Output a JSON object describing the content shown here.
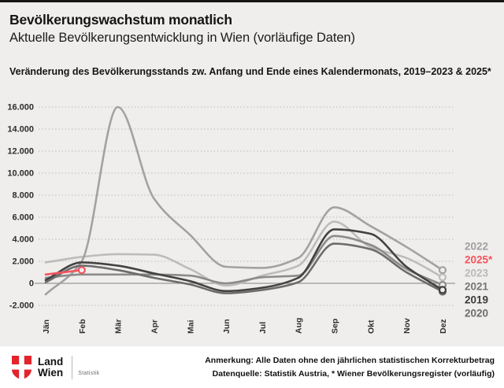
{
  "header": {
    "title": "Bevölkerungswachstum monatlich",
    "subtitle": "Aktuelle Bevölkerungsentwicklung in Wien (vorläufige Daten)"
  },
  "chart_data": {
    "type": "line",
    "heading": "Veränderung des Bevölkerungsstands zw. Anfang und Ende eines Kalendermonats, 2019–2023 & 2025*",
    "categories": [
      "Jän",
      "Feb",
      "Mär",
      "Apr",
      "Mai",
      "Jun",
      "Jul",
      "Aug",
      "Sep",
      "Okt",
      "Nov",
      "Dez"
    ],
    "xlabel": "",
    "ylabel": "",
    "ylim": [
      -2000,
      16000
    ],
    "ytick_step": 2000,
    "grid": "dotted horizontal gridlines, solid zero line",
    "legend_position": "right",
    "series": [
      {
        "name": "2023",
        "color": "#bcbcbc",
        "values": [
          1900,
          2400,
          2650,
          2600,
          1300,
          -200,
          700,
          1600,
          5600,
          3300,
          2300,
          550
        ]
      },
      {
        "name": "2022",
        "color": "#a2a2a2",
        "values": [
          -1000,
          2000,
          16000,
          7700,
          4400,
          1500,
          1400,
          2300,
          6900,
          5200,
          3300,
          1200
        ]
      },
      {
        "name": "2021",
        "color": "#8b8b8b",
        "values": [
          500,
          800,
          800,
          800,
          700,
          0,
          550,
          700,
          4300,
          3500,
          1300,
          -150
        ]
      },
      {
        "name": "2020",
        "color": "#6c6c6c",
        "values": [
          100,
          1600,
          1200,
          500,
          -100,
          -900,
          -600,
          100,
          3600,
          3100,
          1000,
          -750
        ]
      },
      {
        "name": "2019",
        "color": "#424242",
        "values": [
          300,
          1900,
          1600,
          900,
          200,
          -700,
          -400,
          500,
          4900,
          4500,
          1500,
          -600
        ]
      },
      {
        "name": "2025*",
        "color": "#f4545d",
        "values": [
          800,
          1200
        ]
      }
    ],
    "legend": [
      {
        "label": "2022",
        "color": "#a0a0a0"
      },
      {
        "label": "2025*",
        "color": "#f4545d"
      },
      {
        "label": "2023",
        "color": "#b9b9b9"
      },
      {
        "label": "2021",
        "color": "#767676"
      },
      {
        "label": "2019",
        "color": "#3b3b3b"
      },
      {
        "label": "2020",
        "color": "#6c6c6c"
      }
    ]
  },
  "footer": {
    "brand": {
      "line1": "Land",
      "line2": "Wien",
      "sublabel": "Statistik",
      "crest_color": "#e2242c"
    },
    "note1": "Anmerkung: Alle Daten ohne den jährlichen statistischen Korrekturbetrag",
    "note2": "Datenquelle: Statistik Austria, * Wiener Bevölkerungsregister (vorläufig)"
  },
  "colors": {
    "background": "#f0eeec",
    "accent_red": "#f4545d",
    "zero_line": "#9a9896",
    "gridline": "#c9c7c4",
    "text": "#141414"
  }
}
